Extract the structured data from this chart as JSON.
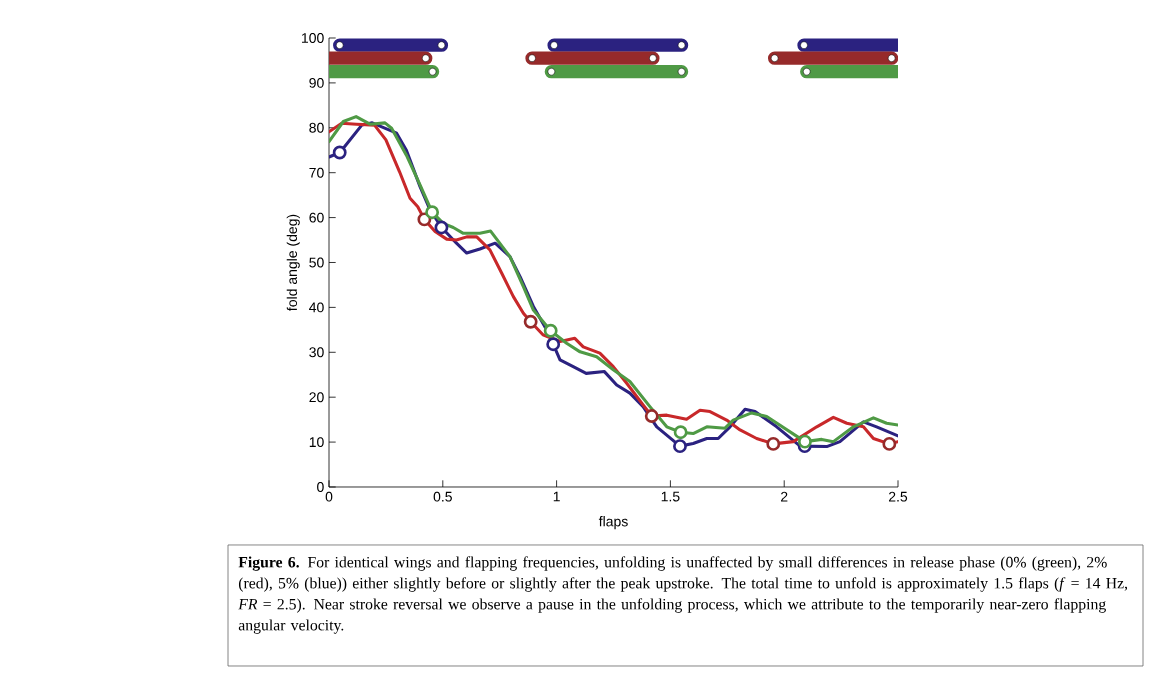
{
  "chart_data": {
    "type": "line",
    "xlabel": "flaps",
    "ylabel": "fold angle (deg)",
    "xlim": [
      0,
      2.5
    ],
    "ylim": [
      0,
      100
    ],
    "xticks": [
      0,
      0.5,
      1,
      1.5,
      2,
      2.5
    ],
    "yticks": [
      0,
      10,
      20,
      30,
      40,
      50,
      60,
      70,
      80,
      90,
      100
    ],
    "annotations": [
      "**Figure 6.** For identical wings and flapping frequencies, unfolding is unaffected by small differences in release phase (0% (green), 2% (red), 5% (blue)) either slightly before or slightly after the peak upstroke. The total time to unfold is approximately 1.5 flaps (*f* = 14 Hz, *FR* = 2.5). Near stroke reversal we observe a pause in the unfolding process, which we attribute to the temporarily near-zero flapping angular velocity."
    ],
    "series": [
      {
        "type": "line",
        "color": "#2b2280",
        "marker": "none",
        "line_style": "solid",
        "x": [
          0.047,
          0.494,
          0.74,
          0.989,
          1.549,
          1.8,
          2.087,
          2.5
        ],
        "values": [
          98.4,
          98.4,
          null,
          98.4,
          98.4,
          null,
          98.4,
          98.4
        ]
      },
      {
        "type": "line",
        "color": "#962a2a",
        "marker": "none",
        "line_style": "solid",
        "x": [
          0,
          0.425,
          0.65,
          0.892,
          1.423,
          1.7,
          1.958,
          2.472
        ],
        "values": [
          95.5,
          95.5,
          null,
          95.5,
          95.5,
          null,
          95.5,
          95.5
        ]
      },
      {
        "type": "line",
        "color": "#4f9a45",
        "marker": "none",
        "line_style": "solid",
        "x": [
          0,
          0.455,
          0.7,
          0.977,
          1.549,
          1.8,
          2.099,
          2.5
        ],
        "values": [
          92.5,
          92.5,
          null,
          92.5,
          92.5,
          null,
          92.5,
          92.5
        ]
      },
      {
        "type": "scatter",
        "color": "#ffffff",
        "marker": "circle",
        "x": [
          0.047,
          0.494,
          0.989,
          1.549,
          2.087
        ],
        "values": [
          98.4,
          98.4,
          98.4,
          98.4,
          98.4
        ]
      },
      {
        "type": "scatter",
        "color": "#ffffff",
        "marker": "circle",
        "x": [
          0.425,
          0.892,
          1.423,
          1.958,
          2.472
        ],
        "values": [
          95.5,
          95.5,
          95.5,
          95.5,
          95.5
        ]
      },
      {
        "type": "scatter",
        "color": "#ffffff",
        "marker": "circle",
        "x": [
          0.455,
          0.977,
          1.549,
          2.099
        ],
        "values": [
          92.5,
          92.5,
          92.5,
          92.5
        ]
      },
      {
        "type": "line",
        "color": "#2b2280",
        "marker": "none",
        "line_style": "solid",
        "x": [
          0,
          0.048,
          0.144,
          0.19,
          0.297,
          0.34,
          0.4,
          0.444,
          0.495,
          0.56,
          0.605,
          0.663,
          0.73,
          0.795,
          0.84,
          0.898,
          0.956,
          0.985,
          1.015,
          1.073,
          1.13,
          1.21,
          1.264,
          1.322,
          1.38,
          1.44,
          1.542,
          1.6,
          1.66,
          1.71,
          1.762,
          1.828,
          1.872,
          1.967,
          2.07,
          2.187,
          2.245,
          2.348,
          2.406,
          2.5
        ],
        "values": [
          73.5,
          74.5,
          80.6,
          81.1,
          78.8,
          75,
          66.9,
          61.7,
          57.8,
          54.3,
          52.1,
          53,
          54.3,
          51.3,
          46.8,
          40.2,
          35,
          31.8,
          28.3,
          26.8,
          25.3,
          25.7,
          22.7,
          20.9,
          17.9,
          13.4,
          9.1,
          9.7,
          10.8,
          10.8,
          13.4,
          17.3,
          16.8,
          13.4,
          9.1,
          9,
          10.1,
          14.5,
          13.4,
          11.4
        ]
      },
      {
        "type": "line",
        "color": "#c8282a",
        "marker": "none",
        "line_style": "solid",
        "x": [
          0,
          0.056,
          0.12,
          0.2,
          0.25,
          0.31,
          0.356,
          0.39,
          0.419,
          0.466,
          0.517,
          0.56,
          0.605,
          0.649,
          0.707,
          0.759,
          0.81,
          0.854,
          0.886,
          0.94,
          1.015,
          1.08,
          1.117,
          1.19,
          1.249,
          1.308,
          1.38,
          1.418,
          1.484,
          1.571,
          1.63,
          1.674,
          1.747,
          1.806,
          1.879,
          1.952,
          2.04,
          2.143,
          2.216,
          2.275,
          2.348,
          2.392,
          2.462,
          2.5
        ],
        "values": [
          79.1,
          81,
          80.8,
          80.6,
          77.3,
          70.2,
          64.3,
          62.4,
          59.6,
          56.9,
          55.2,
          55,
          55.7,
          55.7,
          52.8,
          47.6,
          42.4,
          38.7,
          36.8,
          33.9,
          32.4,
          33.1,
          31.2,
          29.8,
          26.8,
          23.1,
          18.3,
          15.8,
          16,
          15.1,
          17.1,
          16.8,
          14.9,
          12.7,
          10.8,
          9.6,
          10.1,
          13.4,
          15.5,
          14.2,
          13.4,
          10.8,
          9.6,
          10.1
        ]
      },
      {
        "type": "line",
        "color": "#4f9a45",
        "marker": "none",
        "line_style": "solid",
        "x": [
          0,
          0.063,
          0.119,
          0.18,
          0.246,
          0.275,
          0.34,
          0.4,
          0.453,
          0.502,
          0.546,
          0.59,
          0.663,
          0.71,
          0.795,
          0.854,
          0.898,
          0.974,
          1.044,
          1.103,
          1.176,
          1.249,
          1.322,
          1.41,
          1.484,
          1.545,
          1.6,
          1.66,
          1.74,
          1.776,
          1.857,
          1.923,
          2.091,
          2.165,
          2.216,
          2.304,
          2.392,
          2.45,
          2.5
        ],
        "values": [
          76.9,
          81.4,
          82.5,
          80.8,
          81.1,
          79.9,
          73.9,
          67.3,
          61.2,
          58.7,
          57.8,
          56.5,
          56.5,
          57,
          51.3,
          44.6,
          39.4,
          34.8,
          32,
          30.1,
          29,
          26.1,
          23.5,
          17.9,
          13.4,
          12.2,
          11.9,
          13.4,
          13.1,
          14.9,
          16.5,
          15.7,
          10.1,
          10.6,
          10.1,
          13.4,
          15.4,
          14.2,
          13.8
        ]
      },
      {
        "type": "scatter",
        "color": "#2b2280",
        "marker": "circle",
        "x": [
          0.047,
          0.494,
          0.985,
          1.542,
          2.09
        ],
        "values": [
          74.5,
          57.8,
          31.8,
          9.1,
          9.1
        ]
      },
      {
        "type": "scatter",
        "color": "#962a2a",
        "marker": "circle",
        "x": [
          0.419,
          0.886,
          1.418,
          1.952,
          2.462
        ],
        "values": [
          59.6,
          36.8,
          15.8,
          9.6,
          9.6
        ]
      },
      {
        "type": "scatter",
        "color": "#4f9a45",
        "marker": "circle",
        "x": [
          0.453,
          0.974,
          1.545,
          2.091
        ],
        "values": [
          61.2,
          34.8,
          12.2,
          10.1
        ]
      }
    ]
  }
}
